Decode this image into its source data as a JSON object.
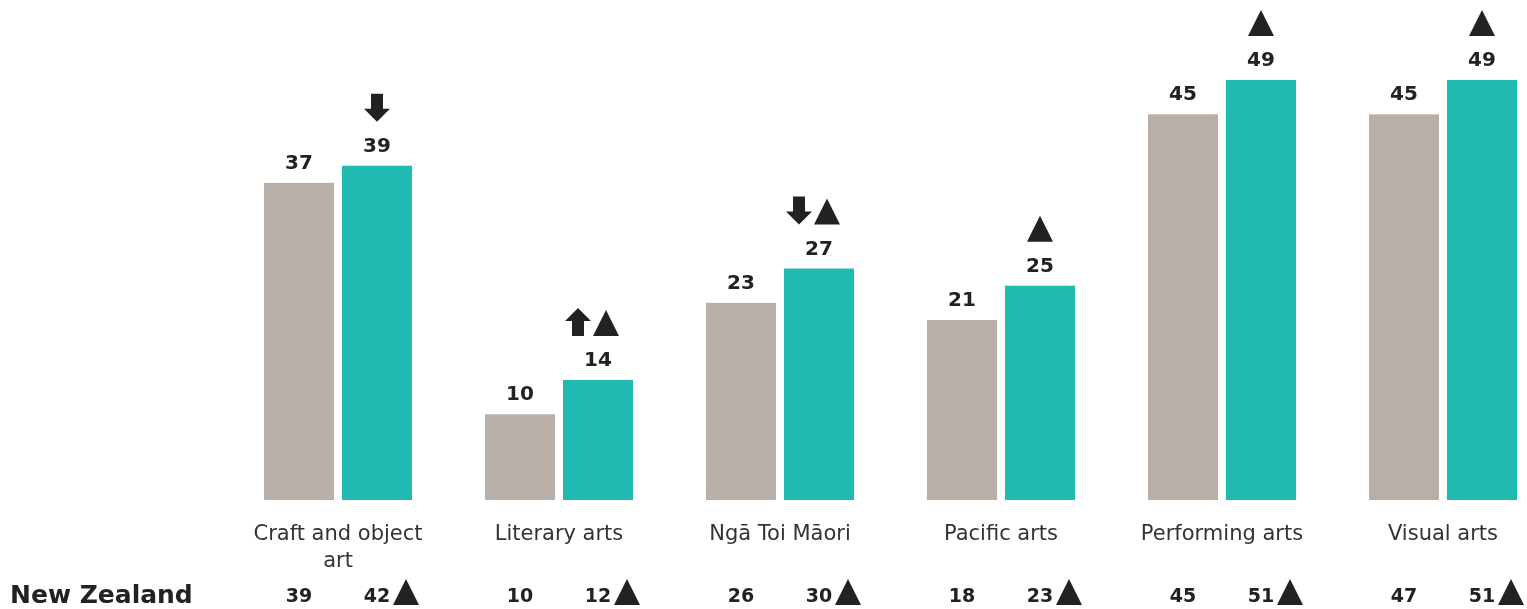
{
  "chart_data": {
    "type": "bar",
    "categories": [
      "Craft and object art",
      "Literary arts",
      "Ngā Toi Māori",
      "Pacific arts",
      "Performing arts",
      "Visual arts"
    ],
    "series": [
      {
        "color": "#b8afa9",
        "values": [
          37,
          10,
          23,
          21,
          45,
          45
        ]
      },
      {
        "color": "#20bab0",
        "values": [
          39,
          14,
          27,
          25,
          49,
          49
        ]
      }
    ],
    "data_labels": true,
    "annotations": [
      "New Zealand",
      "39",
      "42",
      "10",
      "12",
      "26",
      "30",
      "18",
      "23",
      "45",
      "51",
      "47",
      "51"
    ]
  }
}
